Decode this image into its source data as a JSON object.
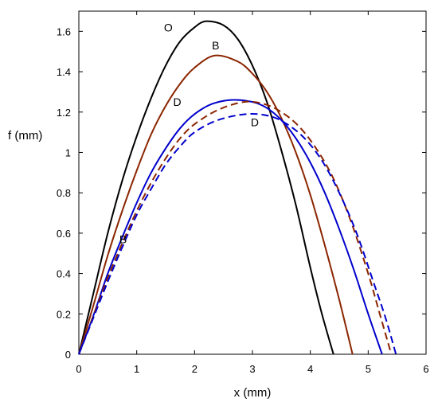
{
  "chart_data": {
    "type": "line",
    "xlabel": "x (mm)",
    "ylabel": "f (mm)",
    "xlim": [
      0,
      6
    ],
    "ylim": [
      0,
      1.7
    ],
    "xticks": [
      0,
      1,
      2,
      3,
      4,
      5,
      6
    ],
    "yticks": [
      0,
      0.2,
      0.4,
      0.6,
      0.8,
      1,
      1.2,
      1.4,
      1.6
    ],
    "grid": false,
    "legend": "none",
    "series": [
      {
        "label": "O",
        "color": "#000000",
        "style": "solid",
        "x": [
          0,
          0.25,
          0.5,
          0.75,
          1.0,
          1.25,
          1.5,
          1.75,
          2.0,
          2.2,
          2.5,
          2.75,
          3.0,
          3.25,
          3.5,
          3.75,
          4.0,
          4.2,
          4.4
        ],
        "y": [
          0,
          0.3,
          0.6,
          0.86,
          1.08,
          1.27,
          1.43,
          1.55,
          1.62,
          1.65,
          1.63,
          1.56,
          1.43,
          1.25,
          1.01,
          0.74,
          0.43,
          0.2,
          0
        ]
      },
      {
        "label": "B",
        "color": "#8b2500",
        "style": "solid",
        "x": [
          0,
          0.25,
          0.5,
          0.75,
          1.0,
          1.25,
          1.5,
          1.75,
          2.0,
          2.35,
          2.75,
          3.0,
          3.25,
          3.5,
          3.75,
          4.0,
          4.25,
          4.5,
          4.73
        ],
        "y": [
          0,
          0.24,
          0.49,
          0.71,
          0.91,
          1.09,
          1.23,
          1.34,
          1.42,
          1.48,
          1.45,
          1.39,
          1.3,
          1.17,
          1.0,
          0.79,
          0.54,
          0.27,
          0
        ]
      },
      {
        "label": "D",
        "color": "#0000cc",
        "style": "solid",
        "x": [
          0,
          0.25,
          0.5,
          0.75,
          1.0,
          1.25,
          1.5,
          1.75,
          2.0,
          2.3,
          2.65,
          3.0,
          3.25,
          3.5,
          3.75,
          4.0,
          4.25,
          4.5,
          4.75,
          5.0,
          5.24
        ],
        "y": [
          0,
          0.19,
          0.4,
          0.58,
          0.75,
          0.9,
          1.02,
          1.12,
          1.19,
          1.24,
          1.26,
          1.25,
          1.22,
          1.16,
          1.07,
          0.95,
          0.8,
          0.62,
          0.42,
          0.2,
          0
        ]
      },
      {
        "label": "B",
        "color": "#8b2500",
        "style": "dashed",
        "x": [
          0,
          0.25,
          0.5,
          0.75,
          1.0,
          1.25,
          1.5,
          1.75,
          2.0,
          2.4,
          2.85,
          3.2,
          3.5,
          3.8,
          4.1,
          4.4,
          4.7,
          5.0,
          5.2,
          5.4
        ],
        "y": [
          0,
          0.19,
          0.38,
          0.55,
          0.71,
          0.85,
          0.97,
          1.07,
          1.14,
          1.21,
          1.25,
          1.24,
          1.2,
          1.13,
          1.02,
          0.87,
          0.66,
          0.4,
          0.2,
          0
        ]
      },
      {
        "label": "D",
        "color": "#0000cc",
        "style": "dashed",
        "x": [
          0,
          0.25,
          0.5,
          0.75,
          1.0,
          1.25,
          1.5,
          1.75,
          2.0,
          2.4,
          2.9,
          3.3,
          3.6,
          3.9,
          4.2,
          4.5,
          4.8,
          5.1,
          5.3,
          5.48
        ],
        "y": [
          0,
          0.18,
          0.36,
          0.53,
          0.69,
          0.82,
          0.94,
          1.03,
          1.1,
          1.16,
          1.19,
          1.18,
          1.14,
          1.07,
          0.96,
          0.8,
          0.6,
          0.35,
          0.18,
          0
        ]
      }
    ],
    "annotations": [
      {
        "text": "O",
        "x": 1.47,
        "y": 1.6
      },
      {
        "text": "B",
        "x": 2.3,
        "y": 1.51
      },
      {
        "text": "D",
        "x": 1.63,
        "y": 1.23
      },
      {
        "text": "D",
        "x": 2.97,
        "y": 1.13
      },
      {
        "text": "B",
        "x": 0.7,
        "y": 0.55
      }
    ]
  }
}
